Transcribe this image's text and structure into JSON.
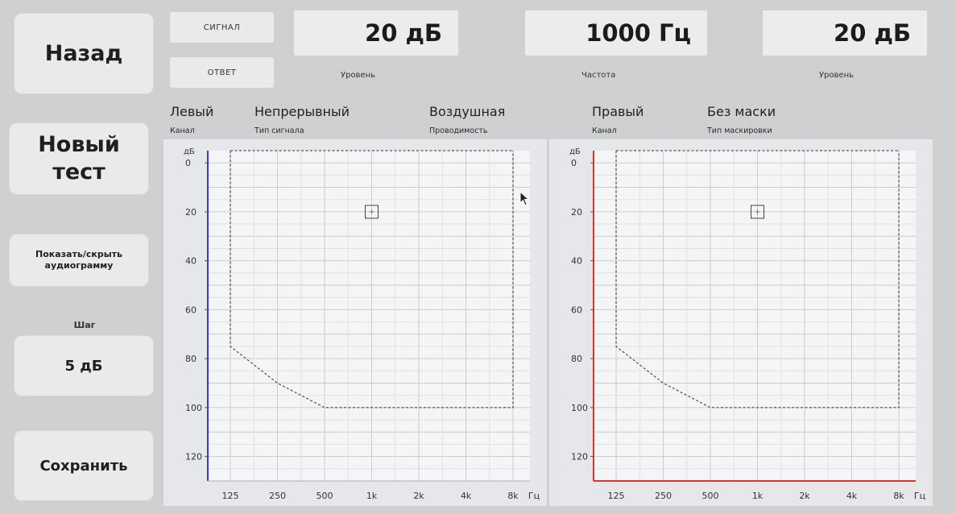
{
  "left_panel": {
    "back_label": "Назад",
    "new_test_label_line1": "Новый",
    "new_test_label_line2": "тест",
    "toggle_audiogram_line1": "Показать/скрыть",
    "toggle_audiogram_line2": "аудиограмму",
    "step_caption": "Шаг",
    "step_value": "5 дБ",
    "save_label": "Сохранить"
  },
  "top_bar": {
    "signal_label": "СИГНАЛ",
    "response_label": "ОТВЕТ",
    "left_level_value": "20 дБ",
    "left_level_caption": "Уровень",
    "frequency_value": "1000 Гц",
    "frequency_caption": "Частота",
    "right_level_value": "20 дБ",
    "right_level_caption": "Уровень"
  },
  "params": {
    "left_channel": "Левый",
    "left_channel_caption": "Канал",
    "signal_type": "Непрерывный",
    "signal_type_caption": "Тип сигнала",
    "conduction": "Воздушная",
    "conduction_caption": "Проводимость",
    "right_channel": "Правый",
    "right_channel_caption": "Канал",
    "masking": "Без маски",
    "masking_caption": "Тип маскировки"
  },
  "chart_data": [
    {
      "type": "scatter",
      "channel": "left",
      "axis_color": "#3a3ad8",
      "ylabel": "дБ",
      "xlabel": "Гц",
      "x_ticks": [
        "125",
        "250",
        "500",
        "1k",
        "2k",
        "4k",
        "8k"
      ],
      "y_ticks": [
        "0",
        "20",
        "40",
        "60",
        "80",
        "100",
        "120"
      ],
      "ylim": [
        -5,
        130
      ],
      "y_inverted": true,
      "grid": true,
      "points": [
        {
          "x": "1k",
          "y": 20,
          "marker": "square"
        }
      ],
      "range_boundary": [
        {
          "x": "125",
          "y": -5
        },
        {
          "x": "125",
          "y": 75
        },
        {
          "x": "250",
          "y": 90
        },
        {
          "x": "500",
          "y": 100
        },
        {
          "x": "8k",
          "y": 100
        },
        {
          "x": "8k",
          "y": -5
        }
      ]
    },
    {
      "type": "scatter",
      "channel": "right",
      "axis_color": "#e03030",
      "ylabel": "дБ",
      "xlabel": "Гц",
      "x_ticks": [
        "125",
        "250",
        "500",
        "1k",
        "2k",
        "4k",
        "8k"
      ],
      "y_ticks": [
        "0",
        "20",
        "40",
        "60",
        "80",
        "100",
        "120"
      ],
      "ylim": [
        -5,
        130
      ],
      "y_inverted": true,
      "grid": true,
      "points": [
        {
          "x": "1k",
          "y": 20,
          "marker": "square"
        }
      ],
      "range_boundary": [
        {
          "x": "125",
          "y": -5
        },
        {
          "x": "125",
          "y": 75
        },
        {
          "x": "250",
          "y": 90
        },
        {
          "x": "500",
          "y": 100
        },
        {
          "x": "8k",
          "y": 100
        },
        {
          "x": "8k",
          "y": -5
        }
      ]
    }
  ]
}
